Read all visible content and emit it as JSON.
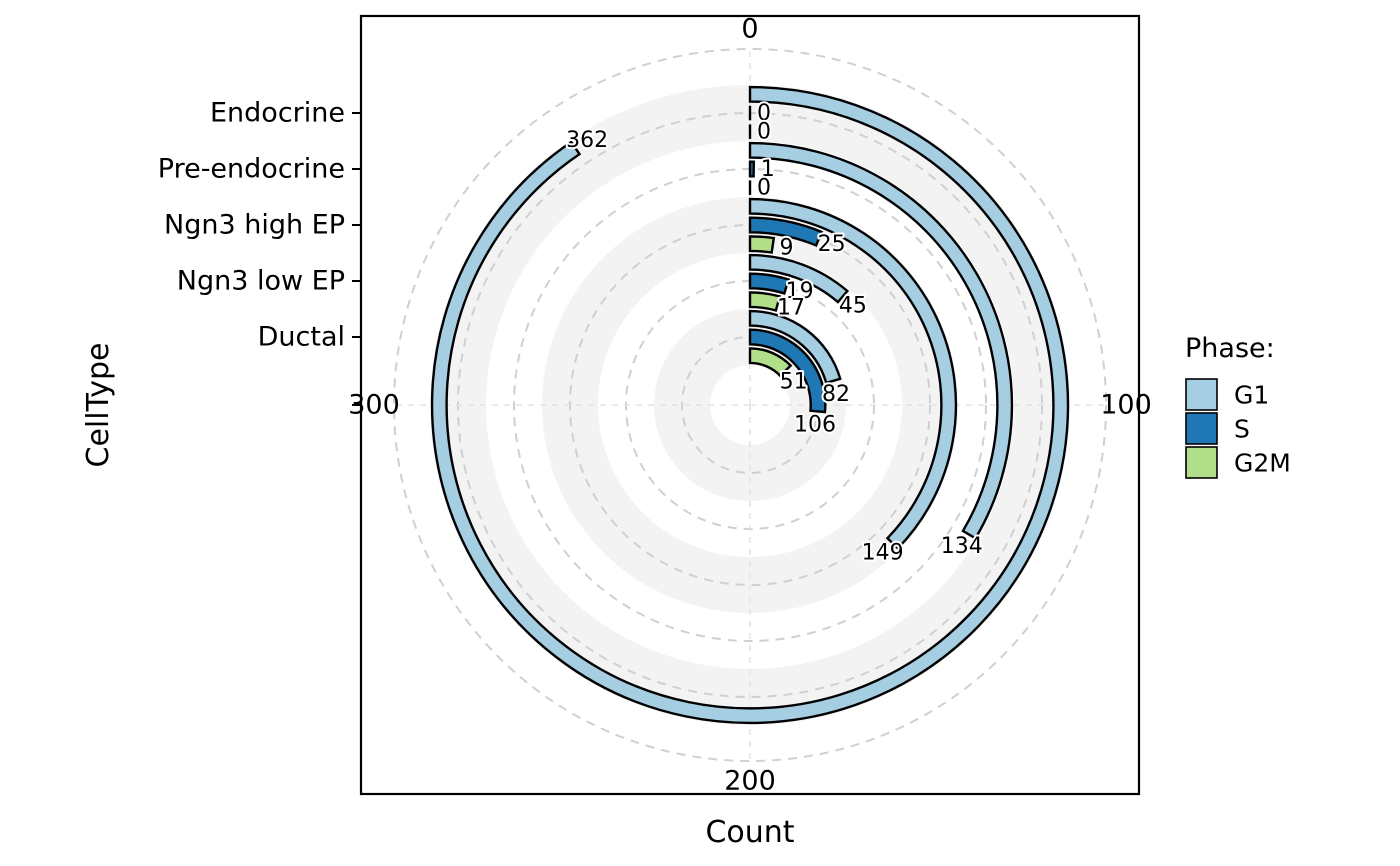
{
  "chart_data": {
    "type": "radial-bar",
    "xlabel": "Count",
    "ylabel": "CellType",
    "categories": [
      "Ductal",
      "Ngn3 low EP",
      "Ngn3 high EP",
      "Pre-endocrine",
      "Endocrine"
    ],
    "angle_axis": {
      "min": 0,
      "max": 400,
      "ticks": [
        0,
        100,
        200,
        300
      ],
      "direction": "clockwise",
      "start": "top"
    },
    "series": [
      {
        "name": "G1",
        "color": "#A6CEE3",
        "values": [
          82,
          45,
          149,
          134,
          362
        ]
      },
      {
        "name": "S",
        "color": "#1F78B4",
        "values": [
          106,
          19,
          25,
          1,
          0
        ]
      },
      {
        "name": "G2M",
        "color": "#B2DF8A",
        "values": [
          51,
          17,
          9,
          0,
          0
        ]
      }
    ],
    "legend": {
      "title": "Phase:",
      "position": "right"
    },
    "grid": true,
    "background_bands": true
  }
}
